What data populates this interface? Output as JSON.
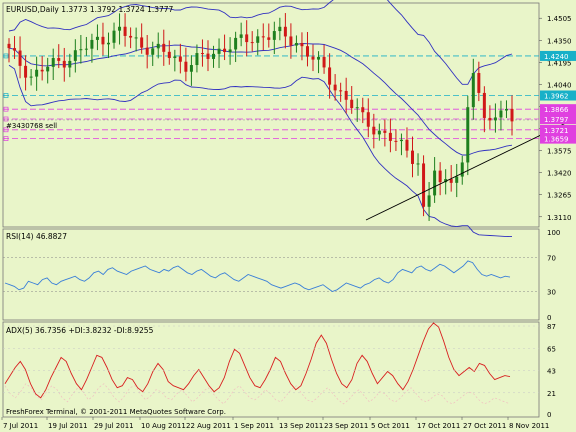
{
  "window": {
    "symbol_line": "EURUSD,Daily  1.3773 1.3792 1.3724 1.3777",
    "copyright": "FreshForex Terminal, © 2001-2011 MetaQuotes Software Corp."
  },
  "colors": {
    "background": "#e9f5c9",
    "bull_candle": "#1e7f1e",
    "bear_candle": "#d01818",
    "bands": "#3030c0",
    "rsi": "#3a7fd8",
    "adx": "#d82020",
    "di": "#f0c0c0",
    "hline_cyan": "#18b0c8",
    "hline_magenta": "#e040e0",
    "label_cyan": "#18b0c8",
    "label_magenta": "#e040e0"
  },
  "main_panel": {
    "price_axis": [
      "1.4505",
      "1.4350",
      "1.4195",
      "1.4040",
      "1.3885",
      "1.3730",
      "1.3575",
      "1.3420",
      "1.3265",
      "1.3110"
    ],
    "price_range": [
      1.3045,
      1.4605
    ],
    "hlines": [
      {
        "price": 1.424,
        "label": "1.4240",
        "kind": "cyan"
      },
      {
        "price": 1.3962,
        "label": "1.3962",
        "kind": "cyan"
      },
      {
        "price": 1.3866,
        "label": "1.3866",
        "kind": "magenta"
      },
      {
        "price": 1.3797,
        "label": "1.3797",
        "kind": "magenta"
      },
      {
        "price": 1.3721,
        "label": "1.3721",
        "kind": "magenta"
      },
      {
        "price": 1.3659,
        "label": "1.3659",
        "kind": "magenta"
      }
    ],
    "order_label": "#3430768 sell",
    "order_price": 1.379
  },
  "rsi_panel": {
    "label": "RSI(14) 46.8827",
    "axis": [
      "100",
      "70",
      "30",
      "0"
    ],
    "range": [
      0,
      100
    ],
    "levels": [
      70,
      30
    ],
    "values": [
      40,
      38,
      36,
      32,
      34,
      42,
      40,
      38,
      44,
      46,
      40,
      38,
      42,
      44,
      46,
      48,
      44,
      42,
      46,
      52,
      54,
      50,
      56,
      58,
      54,
      52,
      50,
      54,
      56,
      58,
      60,
      56,
      54,
      52,
      56,
      54,
      58,
      60,
      56,
      52,
      50,
      54,
      56,
      52,
      48,
      46,
      50,
      52,
      48,
      44,
      42,
      46,
      50,
      48,
      46,
      44,
      42,
      38,
      36,
      34,
      36,
      38,
      40,
      38,
      34,
      32,
      34,
      36,
      38,
      34,
      30,
      32,
      36,
      40,
      38,
      36,
      34,
      38,
      40,
      44,
      46,
      42,
      40,
      44,
      52,
      56,
      54,
      52,
      58,
      60,
      56,
      54,
      58,
      62,
      60,
      56,
      52,
      56,
      60,
      66,
      64,
      56,
      50,
      48,
      50,
      48,
      46,
      48,
      47
    ]
  },
  "adx_panel": {
    "label": "ADX(5) 36.7356 +DI:3.8232 -DI:8.9255",
    "axis": [
      "87",
      "65",
      "43",
      "21",
      "0"
    ],
    "range": [
      0,
      87
    ],
    "adx": [
      30,
      38,
      46,
      52,
      44,
      30,
      20,
      16,
      24,
      36,
      46,
      56,
      52,
      40,
      30,
      24,
      34,
      46,
      58,
      56,
      46,
      34,
      26,
      28,
      36,
      34,
      26,
      22,
      30,
      42,
      50,
      44,
      32,
      28,
      26,
      24,
      30,
      38,
      44,
      36,
      28,
      22,
      26,
      36,
      52,
      64,
      60,
      48,
      36,
      28,
      26,
      34,
      44,
      56,
      52,
      40,
      30,
      24,
      28,
      40,
      54,
      70,
      78,
      70,
      54,
      40,
      30,
      26,
      34,
      50,
      58,
      52,
      40,
      30,
      36,
      42,
      38,
      30,
      24,
      32,
      44,
      58,
      72,
      84,
      90,
      86,
      72,
      56,
      44,
      38,
      42,
      46,
      42,
      50,
      48,
      40,
      34,
      36,
      38,
      37
    ],
    "di": [
      28,
      20,
      16,
      22,
      30,
      26,
      18,
      14,
      22,
      28,
      24,
      16,
      12,
      20,
      26,
      22,
      14,
      18,
      26,
      30,
      24,
      16,
      12,
      18,
      26,
      28,
      20,
      14,
      18,
      24,
      22,
      16,
      14,
      20,
      24,
      18,
      12,
      16,
      22,
      26,
      20,
      14,
      10,
      16,
      24,
      28,
      22,
      16,
      14,
      18,
      24,
      20,
      14,
      12,
      18,
      24,
      28,
      20,
      14,
      12,
      16,
      22,
      26,
      20,
      14,
      10,
      14,
      20,
      24,
      18,
      12,
      16,
      22,
      20,
      14,
      12,
      16,
      22,
      26,
      20,
      14,
      12,
      16,
      20,
      18,
      12,
      10,
      14,
      18,
      22,
      20,
      14,
      10,
      12,
      16,
      14,
      12,
      10
    ]
  },
  "x_axis": {
    "labels": [
      "7 Jul 2011",
      "19 Jul 2011",
      "29 Jul 2011",
      "10 Aug 2011",
      "22 Aug 2011",
      "1 Sep 2011",
      "13 Sep 2011",
      "23 Sep 2011",
      "5 Oct 2011",
      "17 Oct 2011",
      "27 Oct 2011",
      "8 Nov 2011"
    ]
  }
}
